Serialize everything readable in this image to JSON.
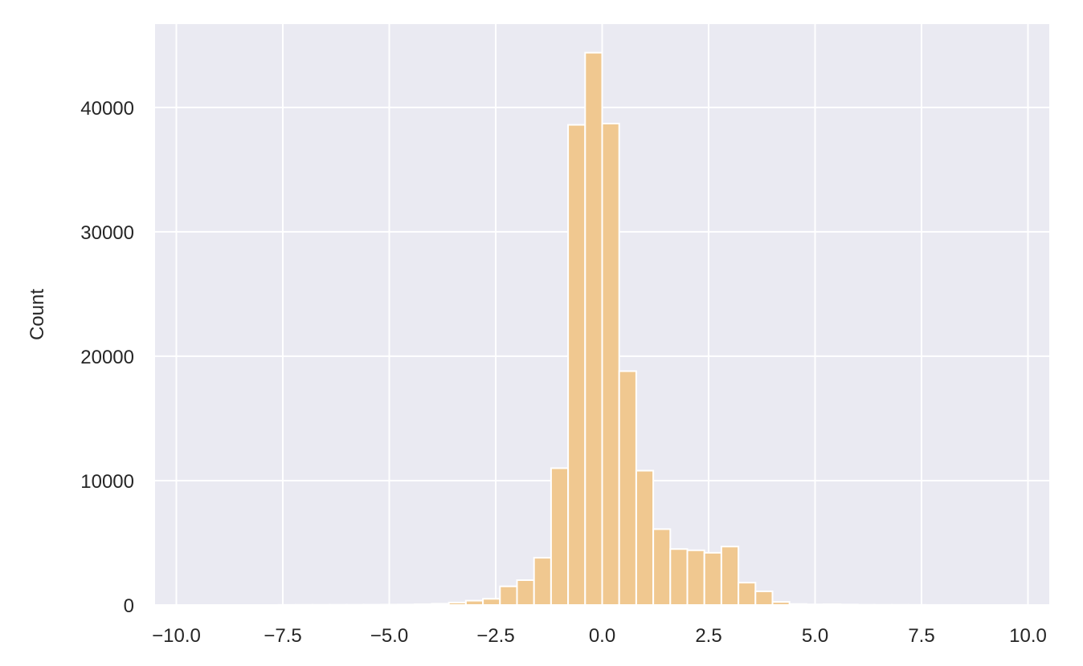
{
  "chart_data": {
    "type": "bar",
    "title": "",
    "xlabel": "",
    "ylabel": "Count",
    "xlim": [
      -10.5,
      10.5
    ],
    "ylim": [
      0,
      46700
    ],
    "xticks": [
      -10.0,
      -7.5,
      -5.0,
      -2.5,
      0.0,
      2.5,
      5.0,
      7.5,
      10.0
    ],
    "xtick_labels": [
      "−10.0",
      "−7.5",
      "−5.0",
      "−2.5",
      "0.0",
      "2.5",
      "5.0",
      "7.5",
      "10.0"
    ],
    "yticks": [
      0,
      10000,
      20000,
      30000,
      40000
    ],
    "ytick_labels": [
      "0",
      "10000",
      "20000",
      "30000",
      "40000"
    ],
    "grid": true,
    "background_color": "#eaeaf2",
    "bar_color": "#f0c890",
    "bar_edge_color": "#ffffff",
    "bins": [
      {
        "start": -10.0,
        "end": -9.6,
        "count": 0
      },
      {
        "start": -9.6,
        "end": -9.2,
        "count": 0
      },
      {
        "start": -9.2,
        "end": -8.8,
        "count": 0
      },
      {
        "start": -8.8,
        "end": -8.4,
        "count": 0
      },
      {
        "start": -8.4,
        "end": -8.0,
        "count": 0
      },
      {
        "start": -8.0,
        "end": -7.6,
        "count": 0
      },
      {
        "start": -7.6,
        "end": -7.2,
        "count": 10
      },
      {
        "start": -7.2,
        "end": -6.8,
        "count": 15
      },
      {
        "start": -6.8,
        "end": -6.4,
        "count": 15
      },
      {
        "start": -6.4,
        "end": -6.0,
        "count": 20
      },
      {
        "start": -6.0,
        "end": -5.6,
        "count": 20
      },
      {
        "start": -5.6,
        "end": -5.2,
        "count": 25
      },
      {
        "start": -5.2,
        "end": -4.8,
        "count": 30
      },
      {
        "start": -4.8,
        "end": -4.4,
        "count": 40
      },
      {
        "start": -4.4,
        "end": -4.0,
        "count": 60
      },
      {
        "start": -4.0,
        "end": -3.6,
        "count": 100
      },
      {
        "start": -3.6,
        "end": -3.2,
        "count": 200
      },
      {
        "start": -3.2,
        "end": -2.8,
        "count": 350
      },
      {
        "start": -2.8,
        "end": -2.4,
        "count": 500
      },
      {
        "start": -2.4,
        "end": -2.0,
        "count": 1500
      },
      {
        "start": -2.0,
        "end": -1.6,
        "count": 2000
      },
      {
        "start": -1.6,
        "end": -1.2,
        "count": 3800
      },
      {
        "start": -1.2,
        "end": -0.8,
        "count": 11000
      },
      {
        "start": -0.8,
        "end": -0.4,
        "count": 38600
      },
      {
        "start": -0.4,
        "end": 0.0,
        "count": 44400
      },
      {
        "start": 0.0,
        "end": 0.4,
        "count": 38700
      },
      {
        "start": 0.4,
        "end": 0.8,
        "count": 18800
      },
      {
        "start": 0.8,
        "end": 1.2,
        "count": 10800
      },
      {
        "start": 1.2,
        "end": 1.6,
        "count": 6100
      },
      {
        "start": 1.6,
        "end": 2.0,
        "count": 4500
      },
      {
        "start": 2.0,
        "end": 2.4,
        "count": 4400
      },
      {
        "start": 2.4,
        "end": 2.8,
        "count": 4200
      },
      {
        "start": 2.8,
        "end": 3.2,
        "count": 4700
      },
      {
        "start": 3.2,
        "end": 3.6,
        "count": 1800
      },
      {
        "start": 3.6,
        "end": 4.0,
        "count": 1100
      },
      {
        "start": 4.0,
        "end": 4.4,
        "count": 250
      },
      {
        "start": 4.4,
        "end": 4.8,
        "count": 80
      },
      {
        "start": 4.8,
        "end": 5.2,
        "count": 50
      },
      {
        "start": 5.2,
        "end": 5.6,
        "count": 60
      },
      {
        "start": 5.6,
        "end": 6.0,
        "count": 40
      },
      {
        "start": 6.0,
        "end": 6.4,
        "count": 20
      },
      {
        "start": 6.4,
        "end": 6.8,
        "count": 15
      },
      {
        "start": 6.8,
        "end": 7.2,
        "count": 15
      },
      {
        "start": 7.2,
        "end": 7.6,
        "count": 10
      },
      {
        "start": 7.6,
        "end": 8.0,
        "count": 5
      },
      {
        "start": 8.0,
        "end": 8.4,
        "count": 5
      },
      {
        "start": 8.4,
        "end": 8.8,
        "count": 0
      },
      {
        "start": 8.8,
        "end": 9.2,
        "count": 0
      },
      {
        "start": 9.2,
        "end": 9.6,
        "count": 0
      },
      {
        "start": 9.6,
        "end": 10.0,
        "count": 5
      }
    ]
  }
}
